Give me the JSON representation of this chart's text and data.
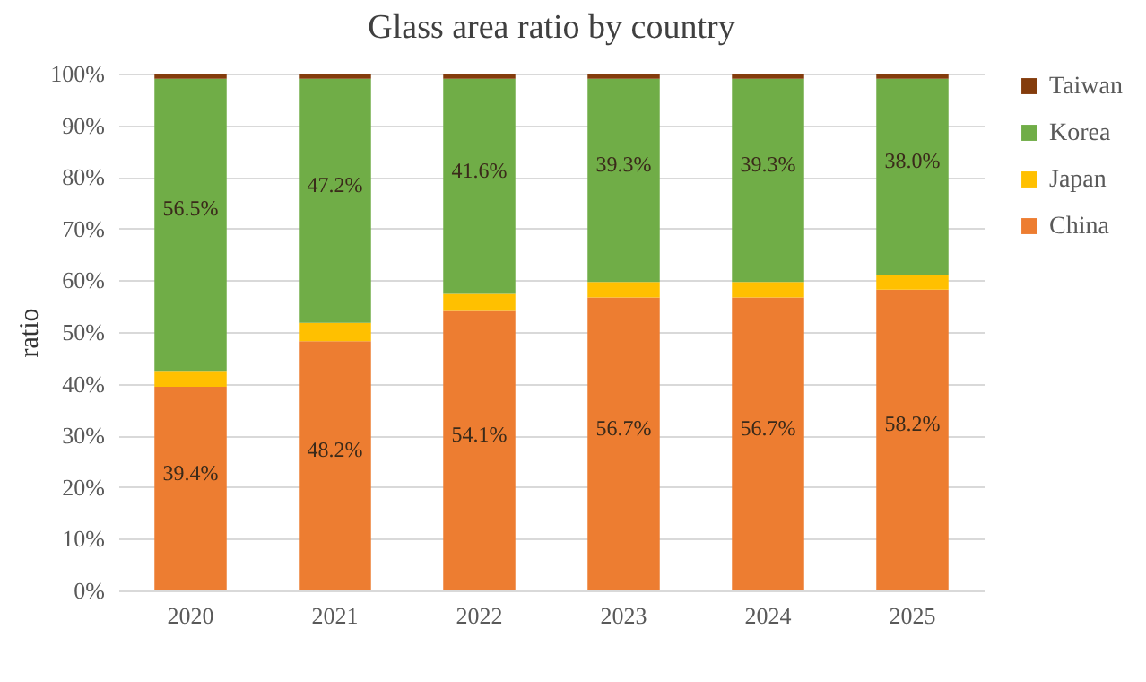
{
  "chart_data": {
    "type": "bar",
    "title": "Glass area ratio by country",
    "ylabel": "ratio",
    "stacked": true,
    "categories": [
      "2020",
      "2021",
      "2022",
      "2023",
      "2024",
      "2025"
    ],
    "series": [
      {
        "name": "China",
        "color": "#ed7d31",
        "values": [
          39.4,
          48.2,
          54.1,
          56.7,
          56.7,
          58.2
        ],
        "value_labels": [
          "39.4%",
          "48.2%",
          "54.1%",
          "56.7%",
          "56.7%",
          "58.2%"
        ]
      },
      {
        "name": "Japan",
        "color": "#ffc000",
        "values": [
          3.1,
          3.6,
          3.3,
          3.0,
          3.0,
          2.8
        ]
      },
      {
        "name": "Korea",
        "color": "#70ad47",
        "values": [
          56.5,
          47.2,
          41.6,
          39.3,
          39.3,
          38.0
        ],
        "value_labels": [
          "56.5%",
          "47.2%",
          "41.6%",
          "39.3%",
          "39.3%",
          "38.0%"
        ]
      },
      {
        "name": "Taiwan",
        "color": "#843c0c",
        "values": [
          1.0,
          1.0,
          1.0,
          1.0,
          1.0,
          1.0
        ]
      }
    ],
    "ylim": [
      0,
      100
    ],
    "yticks": [
      {
        "value": 0,
        "label": "0%"
      },
      {
        "value": 10,
        "label": "10%"
      },
      {
        "value": 20,
        "label": "20%"
      },
      {
        "value": 30,
        "label": "30%"
      },
      {
        "value": 40,
        "label": "40%"
      },
      {
        "value": 50,
        "label": "50%"
      },
      {
        "value": 60,
        "label": "60%"
      },
      {
        "value": 70,
        "label": "70%"
      },
      {
        "value": 80,
        "label": "80%"
      },
      {
        "value": 90,
        "label": "90%"
      },
      {
        "value": 100,
        "label": "100%"
      }
    ],
    "grid": "y",
    "legend": "right"
  }
}
